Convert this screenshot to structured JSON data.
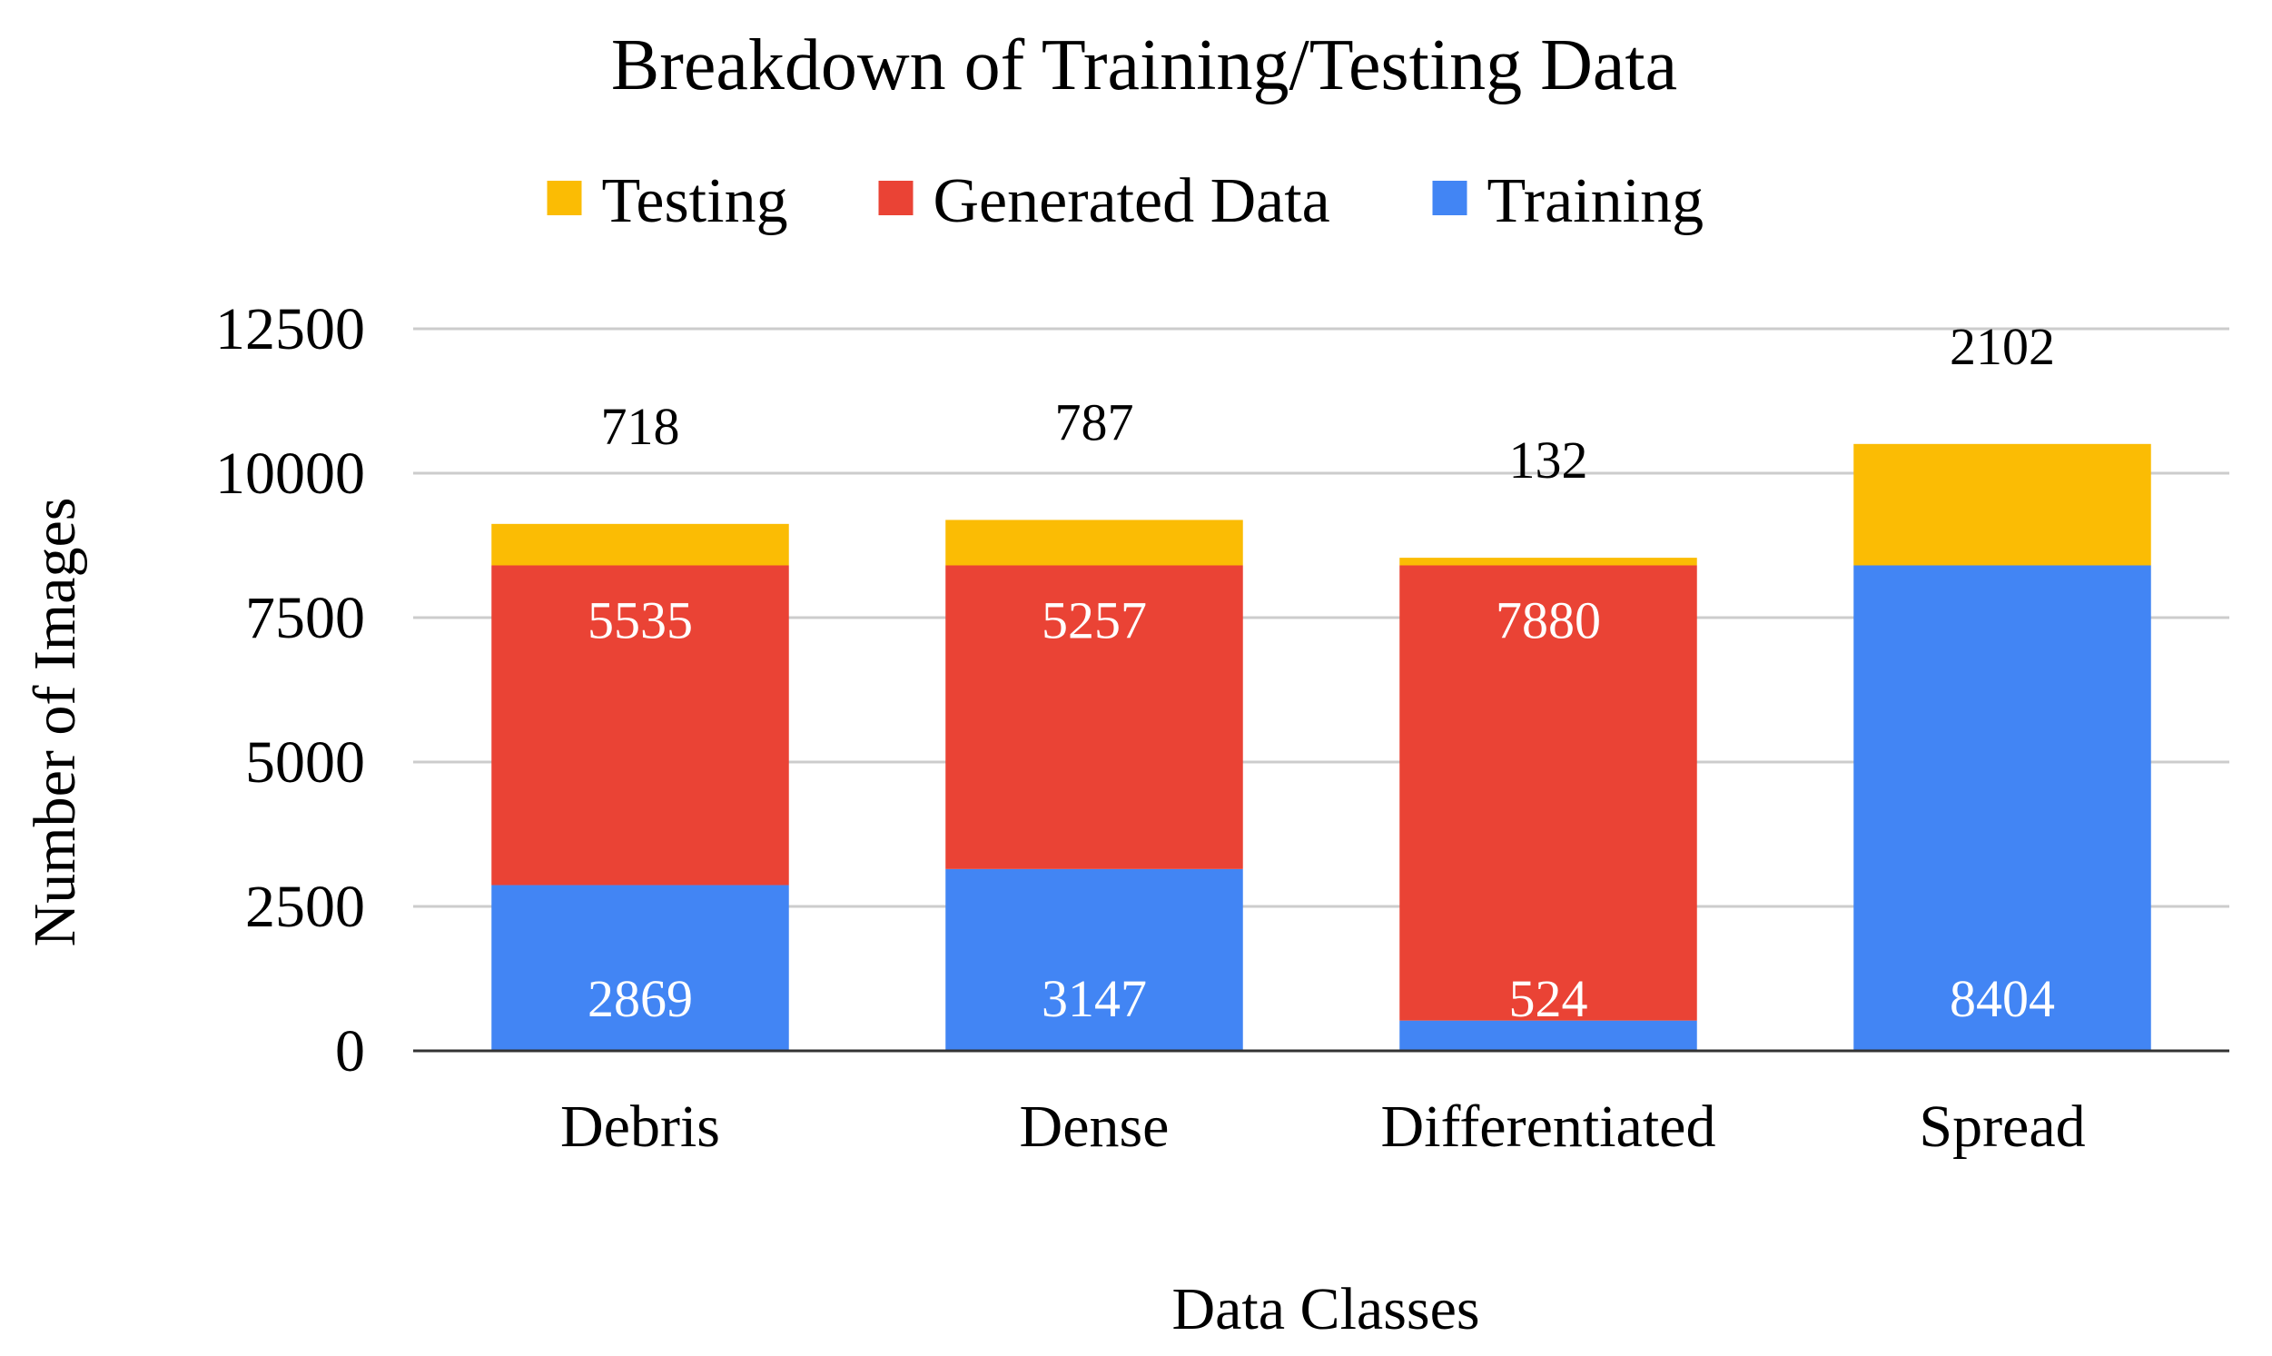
{
  "chart_data": {
    "type": "bar",
    "stacked": true,
    "title": "Breakdown of Training/Testing Data",
    "xlabel": "Data Classes",
    "ylabel": "Number of Images",
    "categories": [
      "Debris",
      "Dense",
      "Differentiated",
      "Spread"
    ],
    "ylim": [
      0,
      12500
    ],
    "yticks": [
      0,
      2500,
      5000,
      7500,
      10000,
      12500
    ],
    "grid": true,
    "legend_position": "top",
    "legend_order": [
      "Testing",
      "Generated Data",
      "Training"
    ],
    "series": [
      {
        "name": "Training",
        "color": "#4285f4",
        "label_color": "#ffffff",
        "label_position": "inside-bottom",
        "values": [
          2869,
          3147,
          524,
          8404
        ]
      },
      {
        "name": "Generated Data",
        "color": "#ea4335",
        "label_color": "#ffffff",
        "label_position": "inside-top",
        "values": [
          5535,
          5257,
          7880,
          0
        ],
        "labels": [
          "5535",
          "5257",
          "7880",
          ""
        ]
      },
      {
        "name": "Testing",
        "color": "#fbbc04",
        "label_color": "#000000",
        "label_position": "above",
        "values": [
          718,
          787,
          132,
          2102
        ]
      }
    ]
  }
}
